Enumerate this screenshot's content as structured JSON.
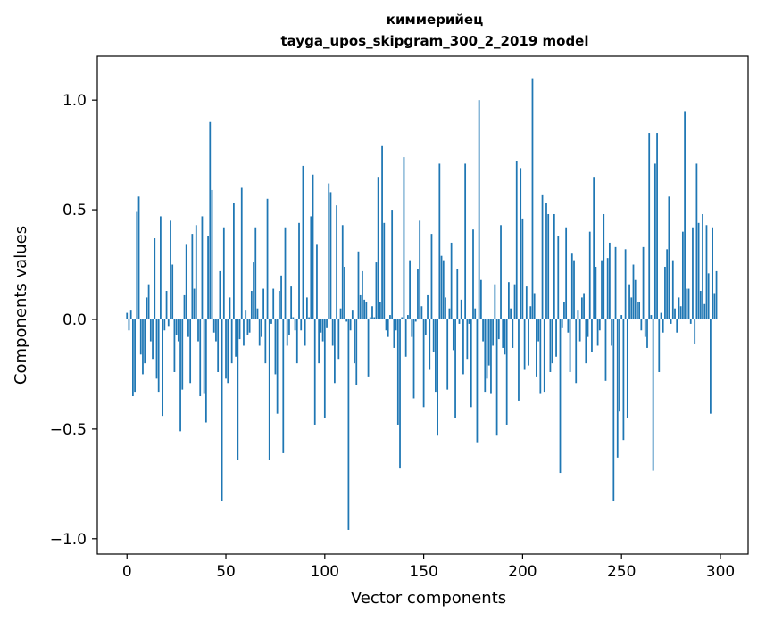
{
  "chart_data": {
    "type": "bar",
    "title_line1": "киммерийец",
    "title_line2": "tayga_upos_skipgram_300_2_2019 model",
    "xlabel": "Vector components",
    "ylabel": "Components values",
    "xlim": [
      -15,
      314
    ],
    "ylim": [
      -1.07,
      1.2
    ],
    "xticks": [
      0,
      50,
      100,
      150,
      200,
      250,
      300
    ],
    "xtick_labels": [
      "0",
      "50",
      "100",
      "150",
      "200",
      "250",
      "300"
    ],
    "yticks": [
      -1.0,
      -0.5,
      0.0,
      0.5,
      1.0
    ],
    "ytick_labels": [
      "−1.0",
      "−0.5",
      "0.0",
      "0.5",
      "1.0"
    ],
    "bar_color": "#1f77b4",
    "values": [
      0.03,
      -0.05,
      0.04,
      -0.35,
      -0.33,
      0.49,
      0.56,
      -0.16,
      -0.25,
      -0.2,
      0.1,
      0.16,
      -0.1,
      -0.18,
      0.37,
      -0.27,
      -0.33,
      0.47,
      -0.44,
      -0.05,
      0.13,
      -0.03,
      0.45,
      0.25,
      -0.24,
      -0.07,
      -0.1,
      -0.51,
      -0.32,
      0.11,
      0.34,
      -0.08,
      -0.29,
      0.39,
      0.14,
      0.43,
      -0.1,
      -0.35,
      0.47,
      -0.34,
      -0.47,
      0.38,
      0.9,
      0.59,
      -0.06,
      -0.1,
      -0.24,
      0.22,
      -0.83,
      0.42,
      -0.27,
      -0.29,
      0.1,
      -0.2,
      0.53,
      -0.17,
      -0.64,
      -0.09,
      0.6,
      -0.12,
      0.04,
      -0.07,
      -0.06,
      0.13,
      0.26,
      0.42,
      0.05,
      -0.12,
      -0.08,
      0.14,
      -0.2,
      0.55,
      -0.64,
      -0.02,
      0.14,
      -0.25,
      -0.43,
      0.13,
      0.2,
      -0.61,
      0.42,
      -0.12,
      -0.07,
      0.15,
      0.01,
      -0.05,
      -0.2,
      0.44,
      -0.05,
      0.7,
      -0.12,
      0.1,
      0.01,
      0.47,
      0.66,
      -0.48,
      0.34,
      -0.2,
      -0.06,
      -0.1,
      -0.45,
      -0.04,
      0.62,
      0.58,
      -0.12,
      -0.29,
      0.52,
      -0.18,
      0.05,
      0.43,
      0.24,
      -0.01,
      -0.96,
      -0.05,
      0.04,
      -0.2,
      -0.3,
      0.31,
      0.11,
      0.22,
      0.09,
      0.08,
      -0.26,
      0.01,
      0.06,
      0.01,
      0.26,
      0.65,
      0.08,
      0.79,
      0.44,
      -0.05,
      -0.08,
      0.02,
      0.5,
      -0.13,
      -0.05,
      -0.48,
      -0.68,
      0.01,
      0.74,
      -0.17,
      0.02,
      0.27,
      -0.08,
      -0.36,
      -0.01,
      0.23,
      0.45,
      0.06,
      -0.4,
      -0.07,
      0.11,
      -0.23,
      0.39,
      -0.15,
      -0.33,
      -0.53,
      0.71,
      0.29,
      0.27,
      0.1,
      -0.32,
      0.05,
      0.35,
      -0.14,
      -0.45,
      0.23,
      -0.02,
      0.09,
      -0.25,
      0.71,
      -0.18,
      -0.02,
      -0.4,
      0.41,
      0.05,
      -0.56,
      1.0,
      0.18,
      -0.1,
      -0.33,
      -0.27,
      -0.21,
      -0.34,
      -0.12,
      0.16,
      -0.53,
      -0.09,
      0.43,
      -0.13,
      -0.16,
      -0.48,
      0.17,
      0.05,
      -0.13,
      0.16,
      0.72,
      -0.37,
      0.69,
      0.46,
      -0.23,
      0.15,
      -0.21,
      0.06,
      1.1,
      0.12,
      -0.26,
      -0.1,
      -0.34,
      0.57,
      -0.33,
      0.53,
      0.48,
      -0.24,
      -0.2,
      0.48,
      -0.17,
      0.38,
      -0.7,
      -0.04,
      0.08,
      0.42,
      -0.06,
      -0.24,
      0.3,
      0.27,
      -0.29,
      0.04,
      -0.1,
      0.1,
      0.12,
      -0.2,
      -0.08,
      0.4,
      -0.15,
      0.65,
      0.24,
      -0.12,
      -0.05,
      0.27,
      0.48,
      -0.28,
      0.28,
      0.35,
      -0.12,
      -0.83,
      0.33,
      -0.63,
      -0.42,
      0.02,
      -0.55,
      0.32,
      -0.45,
      0.16,
      0.1,
      0.25,
      0.18,
      0.08,
      0.08,
      -0.05,
      0.33,
      -0.08,
      -0.13,
      0.85,
      0.02,
      -0.69,
      0.71,
      0.85,
      -0.24,
      0.03,
      -0.06,
      0.24,
      0.32,
      0.56,
      -0.02,
      0.27,
      0.05,
      -0.06,
      0.1,
      0.06,
      0.4,
      0.95,
      0.14,
      0.14,
      -0.02,
      0.42,
      -0.11,
      0.71,
      0.44,
      0.13,
      0.48,
      0.07,
      0.43,
      0.21,
      -0.43,
      0.42,
      0.12,
      0.22
    ]
  }
}
